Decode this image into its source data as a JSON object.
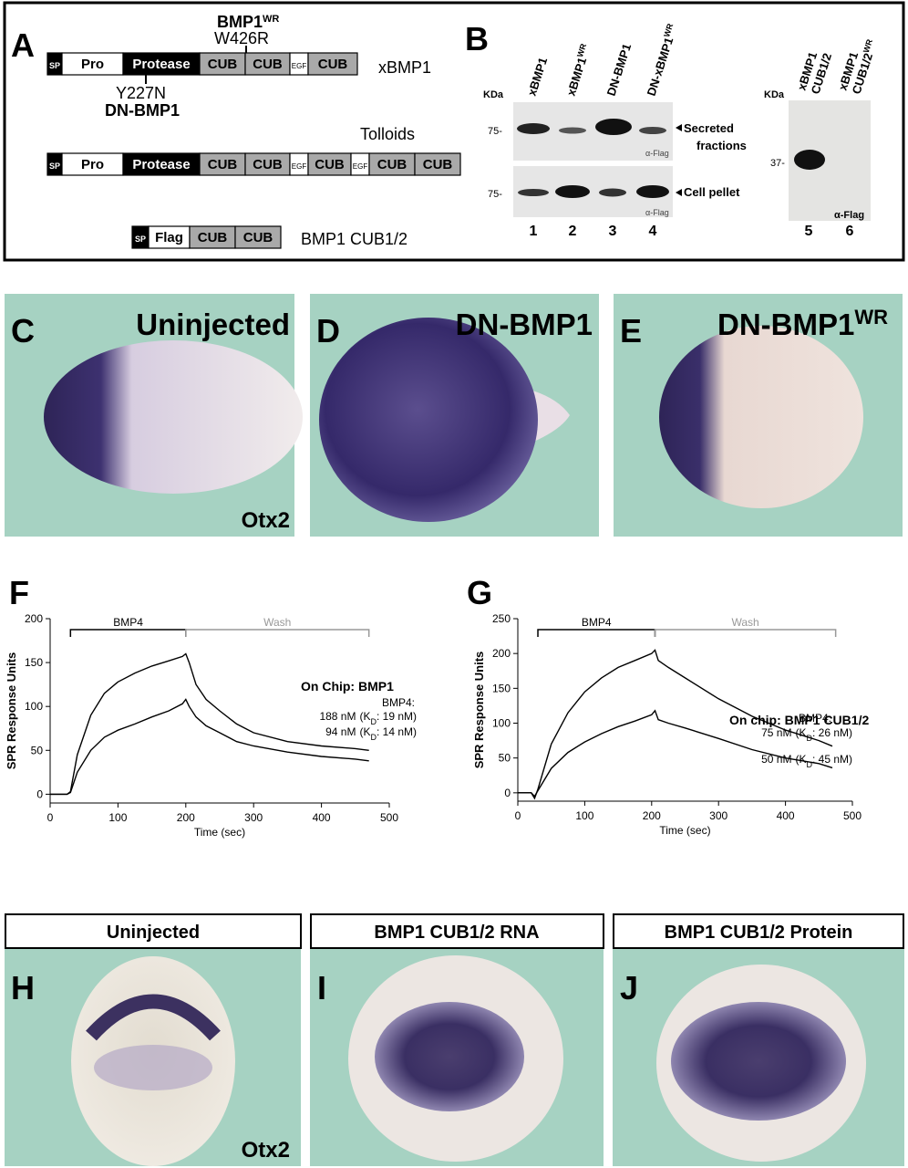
{
  "figure_a": {
    "letter": "A",
    "wr_name": "BMP1",
    "wr_sup": "WR",
    "wr_mut": "W426R",
    "dn_mut": "Y227N",
    "dn_name": "DN-BMP1",
    "xbmp1": {
      "name": "xBMP1",
      "domains": [
        "SP",
        "Pro",
        "Protease",
        "CUB",
        "CUB",
        "EGF",
        "CUB"
      ]
    },
    "tolloids": {
      "name": "Tolloids",
      "domains": [
        "SP",
        "Pro",
        "Protease",
        "CUB",
        "CUB",
        "EGF",
        "CUB",
        "EGF",
        "CUB",
        "CUB"
      ]
    },
    "cub12": {
      "name": "BMP1 CUB1/2",
      "domains": [
        "SP",
        "Flag",
        "CUB",
        "CUB"
      ]
    }
  },
  "figure_b": {
    "letter": "B",
    "kda": "KDa",
    "markers": [
      "75-",
      "75-"
    ],
    "lanes": [
      [
        "xBMP1"
      ],
      [
        "xBMP1",
        "WR"
      ],
      [
        "DN-BMP1"
      ],
      [
        "DN-xBMP1",
        "WR"
      ]
    ],
    "secreted": [
      "Secreted",
      "fractions"
    ],
    "pellet": "Cell pellet",
    "antibodies": [
      "α-Flag",
      "α-Flag"
    ],
    "lane_numbers": [
      "1",
      "2",
      "3",
      "4"
    ],
    "cub_blot": {
      "kda": "KDa",
      "marker": "37-",
      "lanes": [
        [
          "xBMP1",
          "CUB1/2"
        ],
        [
          "xBMP1",
          "CUB1/2",
          "WR"
        ]
      ],
      "antibody": "α-Flag",
      "lane_numbers": [
        "5",
        "6"
      ]
    }
  },
  "embryo_row": [
    {
      "letter": "C",
      "title": "Uninjected",
      "stain": "Otx2"
    },
    {
      "letter": "D",
      "title": "DN-BMP1"
    },
    {
      "letter": "E",
      "title": "DN-BMP1",
      "title_sup": "WR"
    }
  ],
  "chart_data": [
    {
      "type": "line",
      "letter": "F",
      "ylabel": "SPR Response Units",
      "xlabel": "Time (sec)",
      "xlim": [
        0,
        500
      ],
      "ylim": [
        -10,
        200
      ],
      "xticks": [
        0,
        100,
        200,
        300,
        400,
        500
      ],
      "yticks": [
        0,
        50,
        100,
        150,
        200
      ],
      "annotation": "On Chip: BMP1",
      "series_header": "BMP4:",
      "brackets": [
        {
          "label": "BMP4",
          "from": 30,
          "to": 200,
          "color": "#000000"
        },
        {
          "label": "Wash",
          "from": 200,
          "to": 470,
          "color": "#999999"
        }
      ],
      "x": [
        0,
        25,
        30,
        40,
        60,
        80,
        100,
        125,
        150,
        175,
        195,
        200,
        205,
        215,
        230,
        250,
        275,
        300,
        350,
        400,
        450,
        470
      ],
      "series": [
        {
          "name": "188 nM",
          "kd_parts": [
            "(K",
            "D",
            ": 19 nM)"
          ],
          "color": "#000000",
          "values": [
            0,
            0,
            3,
            45,
            90,
            115,
            128,
            138,
            146,
            152,
            157,
            160,
            150,
            125,
            108,
            95,
            80,
            70,
            60,
            55,
            52,
            50
          ]
        },
        {
          "name": "94 nM",
          "kd_parts": [
            "(K",
            "D",
            ": 14 nM)"
          ],
          "color": "#000000",
          "values": [
            0,
            0,
            2,
            25,
            50,
            65,
            73,
            80,
            88,
            95,
            103,
            108,
            100,
            88,
            78,
            70,
            60,
            55,
            48,
            43,
            40,
            38
          ]
        }
      ]
    },
    {
      "type": "line",
      "letter": "G",
      "ylabel": "SPR Response Units",
      "xlabel": "Time (sec)",
      "xlim": [
        0,
        500
      ],
      "ylim": [
        -12,
        250
      ],
      "xticks": [
        0,
        100,
        200,
        300,
        400,
        500
      ],
      "yticks": [
        0,
        50,
        100,
        150,
        200,
        250
      ],
      "annotation": "On chip:  BMP1 CUB1/2",
      "series_header": "BMP4:",
      "brackets": [
        {
          "label": "BMP4",
          "from": 30,
          "to": 205,
          "color": "#000000"
        },
        {
          "label": "Wash",
          "from": 205,
          "to": 475,
          "color": "#999999"
        }
      ],
      "x": [
        0,
        20,
        25,
        30,
        50,
        75,
        100,
        125,
        150,
        175,
        200,
        205,
        210,
        225,
        250,
        300,
        350,
        400,
        450,
        470
      ],
      "series": [
        {
          "name": "75 nM",
          "kd_parts": [
            "(K",
            "D",
            ": 26 nM)"
          ],
          "color": "#000000",
          "values": [
            0,
            0,
            -8,
            5,
            70,
            115,
            145,
            165,
            180,
            190,
            200,
            205,
            190,
            180,
            165,
            135,
            110,
            90,
            75,
            67
          ]
        },
        {
          "name": "50 nM",
          "kd_parts": [
            "(K",
            "D",
            ": 45 nM)"
          ],
          "color": "#000000",
          "values": [
            0,
            0,
            -5,
            3,
            35,
            58,
            73,
            85,
            95,
            103,
            112,
            118,
            105,
            100,
            93,
            78,
            62,
            50,
            42,
            36
          ]
        }
      ]
    }
  ],
  "bottom_row": [
    {
      "letter": "H",
      "title": "Uninjected",
      "stain": "Otx2"
    },
    {
      "letter": "I",
      "title": "BMP1 CUB1/2 RNA"
    },
    {
      "letter": "J",
      "title": "BMP1 CUB1/2 Protein"
    }
  ]
}
